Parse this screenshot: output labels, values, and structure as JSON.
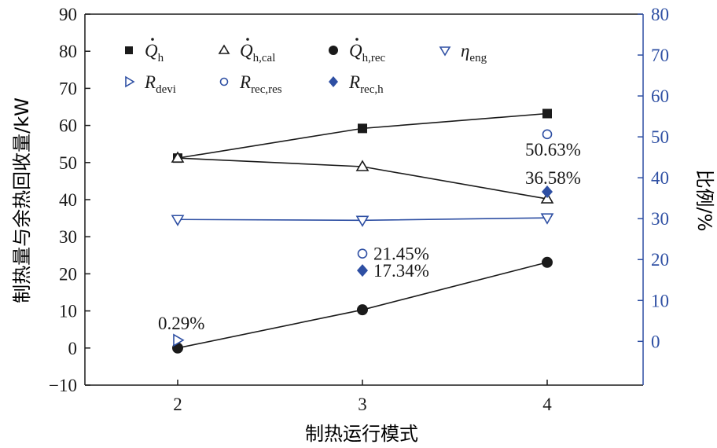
{
  "chart_data": {
    "type": "line",
    "xlabel": "制热运行模式",
    "ylabel_left": "制热量与余热回收量/kW",
    "ylabel_right": "比例/%",
    "categories": [
      "2",
      "3",
      "4"
    ],
    "x_ticks": [
      "2",
      "3",
      "4"
    ],
    "y_left_ticks": [
      "−10",
      "0",
      "10",
      "20",
      "30",
      "40",
      "50",
      "60",
      "70",
      "80",
      "90"
    ],
    "y_right_ticks": [
      "0",
      "10",
      "20",
      "30",
      "40",
      "50",
      "60",
      "70",
      "80"
    ],
    "ylim_left": [
      -10,
      90
    ],
    "ylim_right": [
      -10.7,
      80
    ],
    "grid": false,
    "legend_placement": "top-left",
    "series": [
      {
        "key": "Qh",
        "name": "Q̇h",
        "sym": "Q",
        "sub": "h",
        "dot": true,
        "axis": "left",
        "marker": "square",
        "color": "#1a1a1a",
        "line": true,
        "values": [
          51.2,
          59.2,
          63.2
        ]
      },
      {
        "key": "Qhcal",
        "name": "Q̇h,cal",
        "sym": "Q",
        "sub": "h,cal",
        "dot": true,
        "axis": "left",
        "marker": "triangle-up",
        "color": "#1a1a1a",
        "line": true,
        "values": [
          51.2,
          48.9,
          40.2
        ]
      },
      {
        "key": "Qhrec",
        "name": "Q̇h,rec",
        "sym": "Q",
        "sub": "h,rec",
        "dot": true,
        "axis": "left",
        "marker": "circle",
        "color": "#1a1a1a",
        "line": true,
        "values": [
          0.0,
          10.3,
          23.1
        ]
      },
      {
        "key": "eta",
        "name": "ηeng",
        "sym": "η",
        "sub": "eng",
        "dot": false,
        "axis": "right",
        "marker": "triangle-down",
        "color": "#2e4fa3",
        "line": true,
        "values": [
          29.8,
          29.6,
          30.2
        ]
      },
      {
        "key": "Rdevi",
        "name": "Rdevi",
        "sym": "R",
        "sub": "devi",
        "dot": false,
        "axis": "right",
        "marker": "triangle-right",
        "color": "#2e4fa3",
        "line": false,
        "values": [
          0.29,
          null,
          null
        ]
      },
      {
        "key": "Rrecres",
        "name": "Rrec,res",
        "sym": "R",
        "sub": "rec,res",
        "dot": false,
        "axis": "right",
        "marker": "circle-open",
        "color": "#2e4fa3",
        "line": false,
        "values": [
          null,
          21.45,
          50.63
        ]
      },
      {
        "key": "Rrech",
        "name": "Rrec,h",
        "sym": "R",
        "sub": "rec,h",
        "dot": false,
        "axis": "right",
        "marker": "diamond",
        "color": "#2e4fa3",
        "line": false,
        "values": [
          null,
          17.34,
          36.58
        ]
      }
    ],
    "annotations": [
      {
        "text": "0.29%",
        "x": "2",
        "axis": "right",
        "y": 0.29
      },
      {
        "text": "21.45%",
        "x": "3",
        "axis": "right",
        "y": 21.45
      },
      {
        "text": "17.34%",
        "x": "3",
        "axis": "right",
        "y": 17.34
      },
      {
        "text": "50.63%",
        "x": "4",
        "axis": "right",
        "y": 50.63
      },
      {
        "text": "36.58%",
        "x": "4",
        "axis": "right",
        "y": 36.58
      }
    ],
    "colors": {
      "left_axis": "#1a1a1a",
      "right_axis": "#2e4fa3"
    }
  }
}
